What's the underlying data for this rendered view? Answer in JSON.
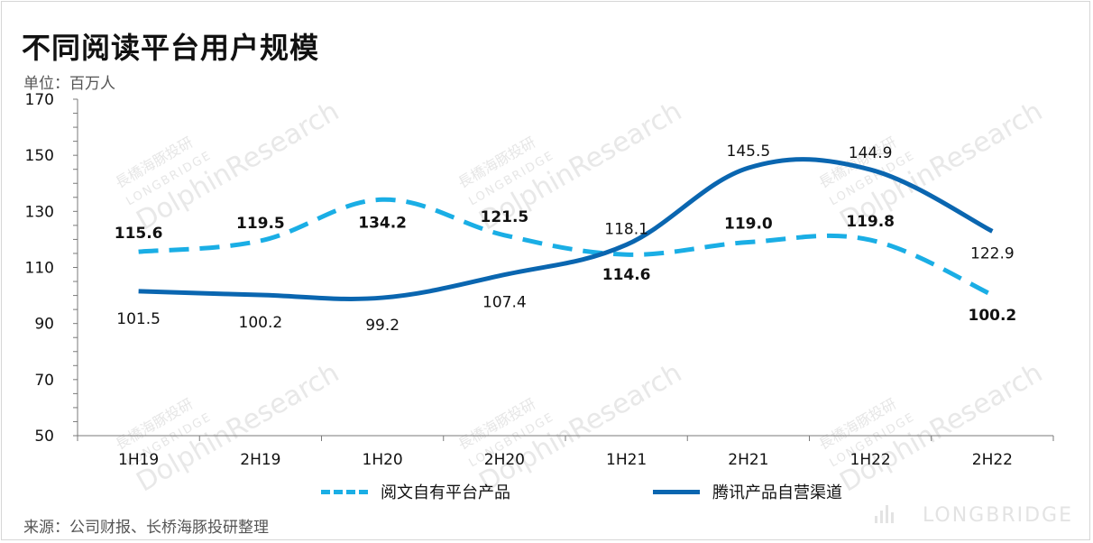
{
  "title": "不同阅读平台用户规模",
  "unit": "单位：百万人",
  "source": "来源：公司财报、长桥海豚投研整理",
  "watermark": {
    "cn": "長橋海豚投研",
    "en_small": "LONGBRIDGE",
    "en_large": "DolphinResearch",
    "brand": "LONGBRIDGE"
  },
  "colors": {
    "series1": "#1aaee5",
    "series2": "#0a66b0"
  },
  "chart_data": {
    "type": "line",
    "title": "不同阅读平台用户规模",
    "ylabel": "单位：百万人",
    "xlabel": "",
    "categories": [
      "1H19",
      "2H19",
      "1H20",
      "2H20",
      "1H21",
      "2H21",
      "1H22",
      "2H22"
    ],
    "ylim": [
      50,
      170
    ],
    "yticks": [
      50,
      70,
      90,
      110,
      130,
      150,
      170
    ],
    "grid": false,
    "legend_position": "bottom",
    "series": [
      {
        "name": "阅文自有平台产品",
        "style": "dashed",
        "values": [
          115.6,
          119.5,
          134.2,
          121.5,
          114.6,
          119.0,
          119.8,
          100.2
        ],
        "labels": [
          "115.6",
          "119.5",
          "134.2",
          "121.5",
          "114.6",
          "119.0",
          "119.8",
          "100.2"
        ]
      },
      {
        "name": "腾讯产品自营渠道",
        "style": "solid",
        "values": [
          101.5,
          100.2,
          99.2,
          107.4,
          118.1,
          145.5,
          144.9,
          122.9
        ],
        "labels": [
          "101.5",
          "100.2",
          "99.2",
          "107.4",
          "118.1",
          "145.5",
          "144.9",
          "122.9"
        ]
      }
    ]
  }
}
